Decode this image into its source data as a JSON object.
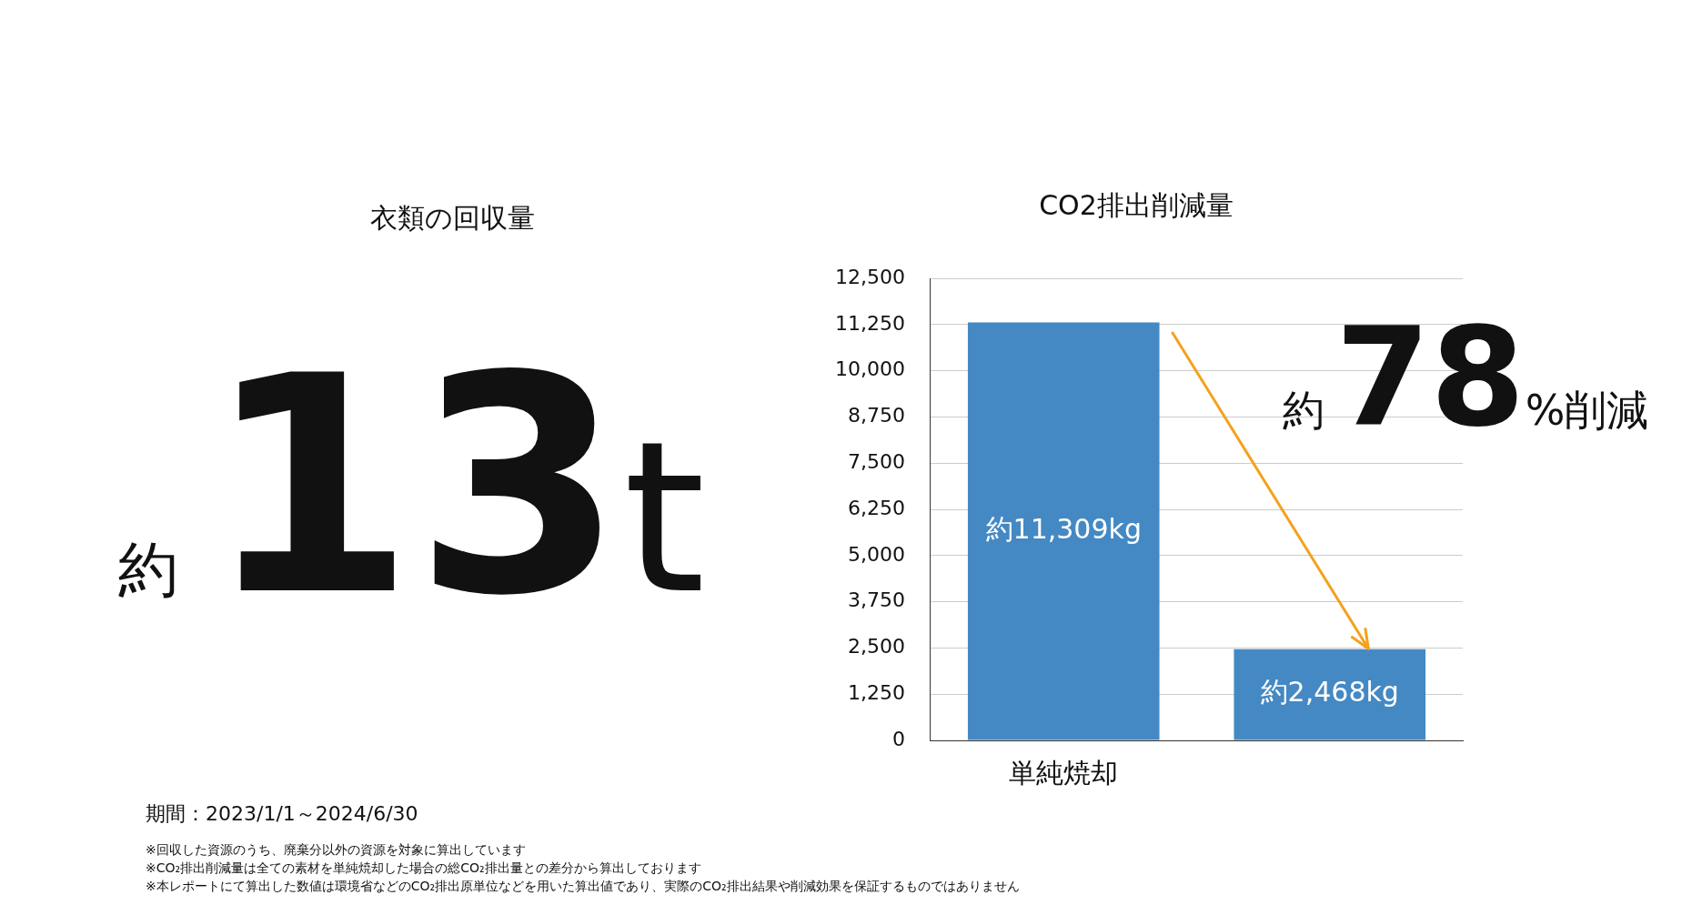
{
  "chart_data": [
    {
      "type": "other",
      "title": "衣類の回収量",
      "annotations": [
        "約",
        "13",
        "t",
        "期間：2023/1/1～2024/6/30",
        "※回収した資源のうち、廃棄分以外の資源を対象に算出しています",
        "※CO₂排出削減量は全ての素材を単純焼却した場合の総CO₂排出量との差分から算出しております",
        "※本レポートにて算出した数値は環境省などのCO₂排出原単位などを用いた算出値であり、実際のCO₂排出結果や削減効果を保証するものではありません"
      ]
    },
    {
      "type": "bar",
      "title": "CO2排出削減量",
      "categories": [
        "単純焼却",
        null
      ],
      "values": [
        11309,
        2468
      ],
      "value_labels": [
        "約11,309kg",
        "約2,468kg"
      ],
      "color": "#4489c3",
      "ylim": [
        0,
        12500
      ],
      "yticks": [
        {
          "value": 0,
          "label": "0"
        },
        {
          "value": 1250,
          "label": "1,250"
        },
        {
          "value": 2500,
          "label": "2,500"
        },
        {
          "value": 3750,
          "label": "3,750"
        },
        {
          "value": 5000,
          "label": "5,000"
        },
        {
          "value": 6250,
          "label": "6,250"
        },
        {
          "value": 7500,
          "label": "7,500"
        },
        {
          "value": 8750,
          "label": "8,750"
        },
        {
          "value": 10000,
          "label": "10,000"
        },
        {
          "value": 11250,
          "label": "11,250"
        },
        {
          "value": 12500,
          "label": "12,500"
        }
      ],
      "grid": "y",
      "legend": false,
      "annotations": [
        "約",
        "78",
        "%削減"
      ]
    }
  ]
}
